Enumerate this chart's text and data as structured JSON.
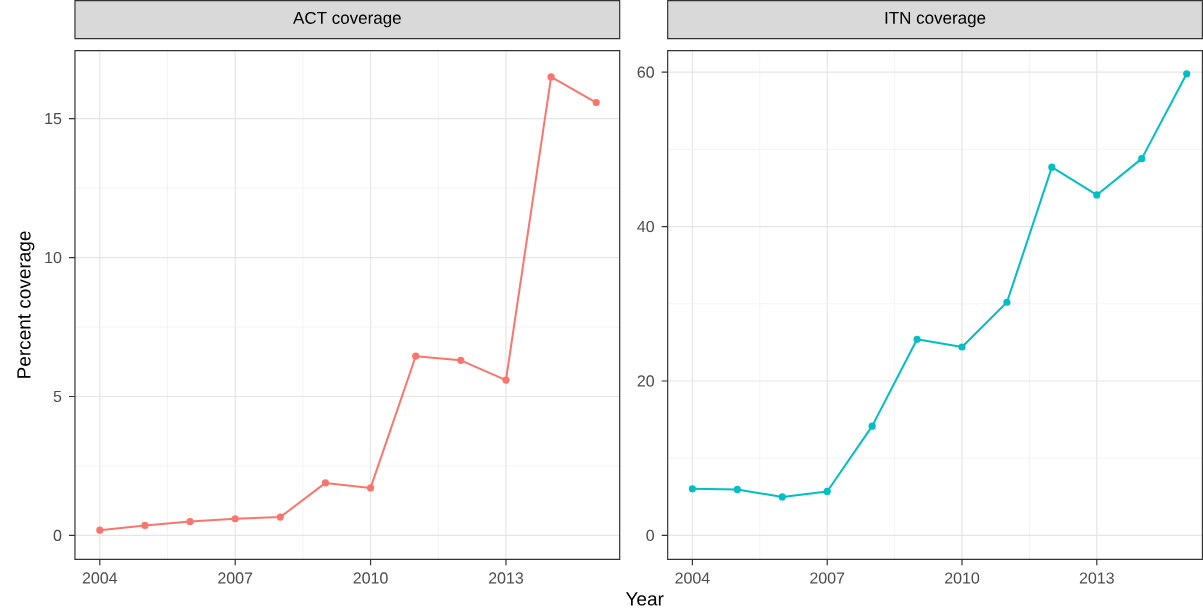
{
  "chart_data": [
    {
      "type": "line",
      "title": "ACT coverage",
      "xlabel": "Year",
      "ylabel": "Percent coverage",
      "x": [
        2004,
        2005,
        2006,
        2007,
        2008,
        2009,
        2010,
        2011,
        2012,
        2013,
        2014,
        2015
      ],
      "series": [
        {
          "color": "#f8766d",
          "values": [
            0.19,
            0.36,
            0.5,
            0.6,
            0.66,
            1.89,
            1.71,
            6.45,
            6.3,
            5.59,
            16.5,
            15.58
          ]
        }
      ],
      "xlim": [
        2003.45,
        2015.52
      ],
      "ylim": [
        -0.86,
        17.45
      ],
      "xticks": [
        2004,
        2007,
        2010,
        2013
      ],
      "yticks": [
        0,
        5,
        10,
        15
      ],
      "grid": true,
      "marker": "circle",
      "line_style": "solid"
    },
    {
      "type": "line",
      "title": "ITN coverage",
      "x": [
        2004,
        2005,
        2006,
        2007,
        2008,
        2009,
        2010,
        2011,
        2012,
        2013,
        2014,
        2015
      ],
      "series": [
        {
          "color": "#00bfc4",
          "values": [
            6.04,
            5.95,
            4.98,
            5.69,
            14.15,
            25.4,
            24.4,
            30.2,
            47.7,
            44.1,
            48.8,
            59.8
          ]
        }
      ],
      "xlim": [
        2003.45,
        2015.35
      ],
      "ylim": [
        -3.1,
        62.8
      ],
      "xticks": [
        2004,
        2007,
        2010,
        2013
      ],
      "yticks": [
        0,
        20,
        40,
        60
      ],
      "grid": true,
      "marker": "circle",
      "line_style": "solid"
    }
  ]
}
